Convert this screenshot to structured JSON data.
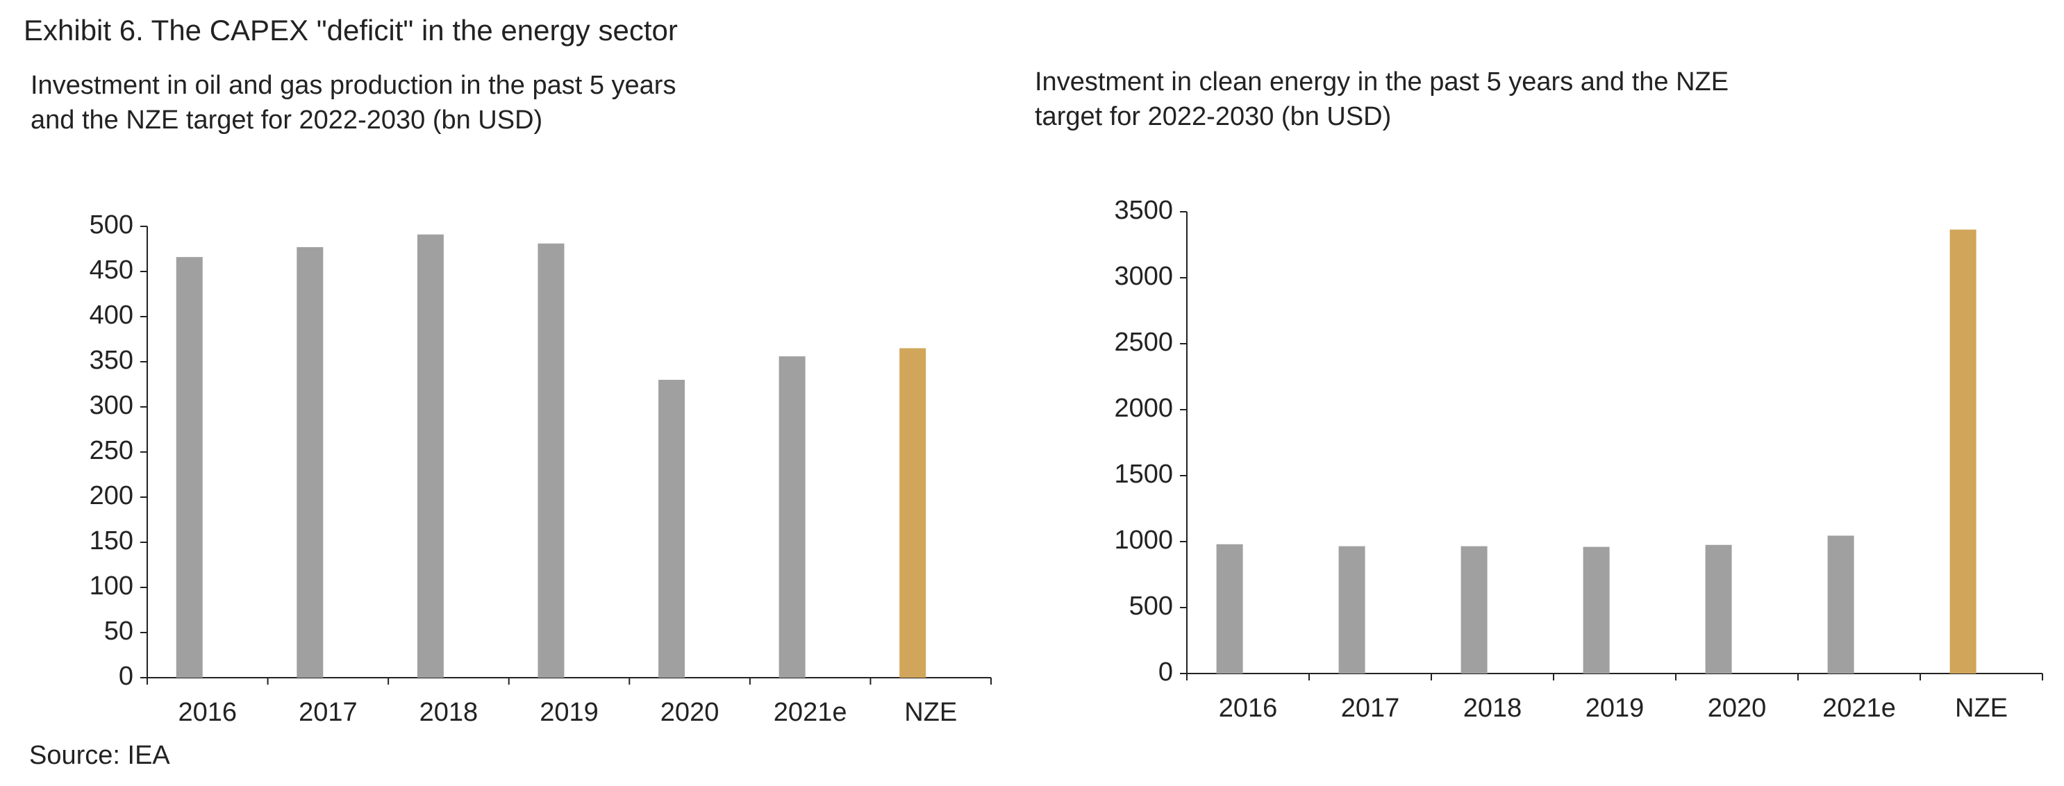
{
  "title": "Exhibit 6. The CAPEX \"deficit\" in the energy sector",
  "source": "Source: IEA",
  "chart_data": [
    {
      "type": "bar",
      "subtitle": [
        "Investment in oil and gas production in the past 5 years",
        "and the NZE target for 2022-2030 (bn USD)"
      ],
      "categories": [
        "2016",
        "2017",
        "2018",
        "2019",
        "2020",
        "2021e",
        "NZE"
      ],
      "values": [
        466,
        477,
        491,
        481,
        330,
        356,
        365
      ],
      "colors": [
        "#a0a0a0",
        "#a0a0a0",
        "#a0a0a0",
        "#a0a0a0",
        "#a0a0a0",
        "#a0a0a0",
        "#d1a55a"
      ],
      "ylim": [
        0,
        500
      ],
      "yticks": [
        0,
        50,
        100,
        150,
        200,
        250,
        300,
        350,
        400,
        450,
        500
      ],
      "grid": false
    },
    {
      "type": "bar",
      "subtitle": [
        "Investment in clean energy in the past 5 years and the NZE",
        "target for 2022-2030 (bn USD)"
      ],
      "categories": [
        "2016",
        "2017",
        "2018",
        "2019",
        "2020",
        "2021e",
        "NZE"
      ],
      "values": [
        980,
        965,
        965,
        960,
        975,
        1045,
        3365
      ],
      "colors": [
        "#a0a0a0",
        "#a0a0a0",
        "#a0a0a0",
        "#a0a0a0",
        "#a0a0a0",
        "#a0a0a0",
        "#d1a55a"
      ],
      "ylim": [
        0,
        3500
      ],
      "yticks": [
        0,
        500,
        1000,
        1500,
        2000,
        2500,
        3000,
        3500
      ],
      "grid": false
    }
  ]
}
